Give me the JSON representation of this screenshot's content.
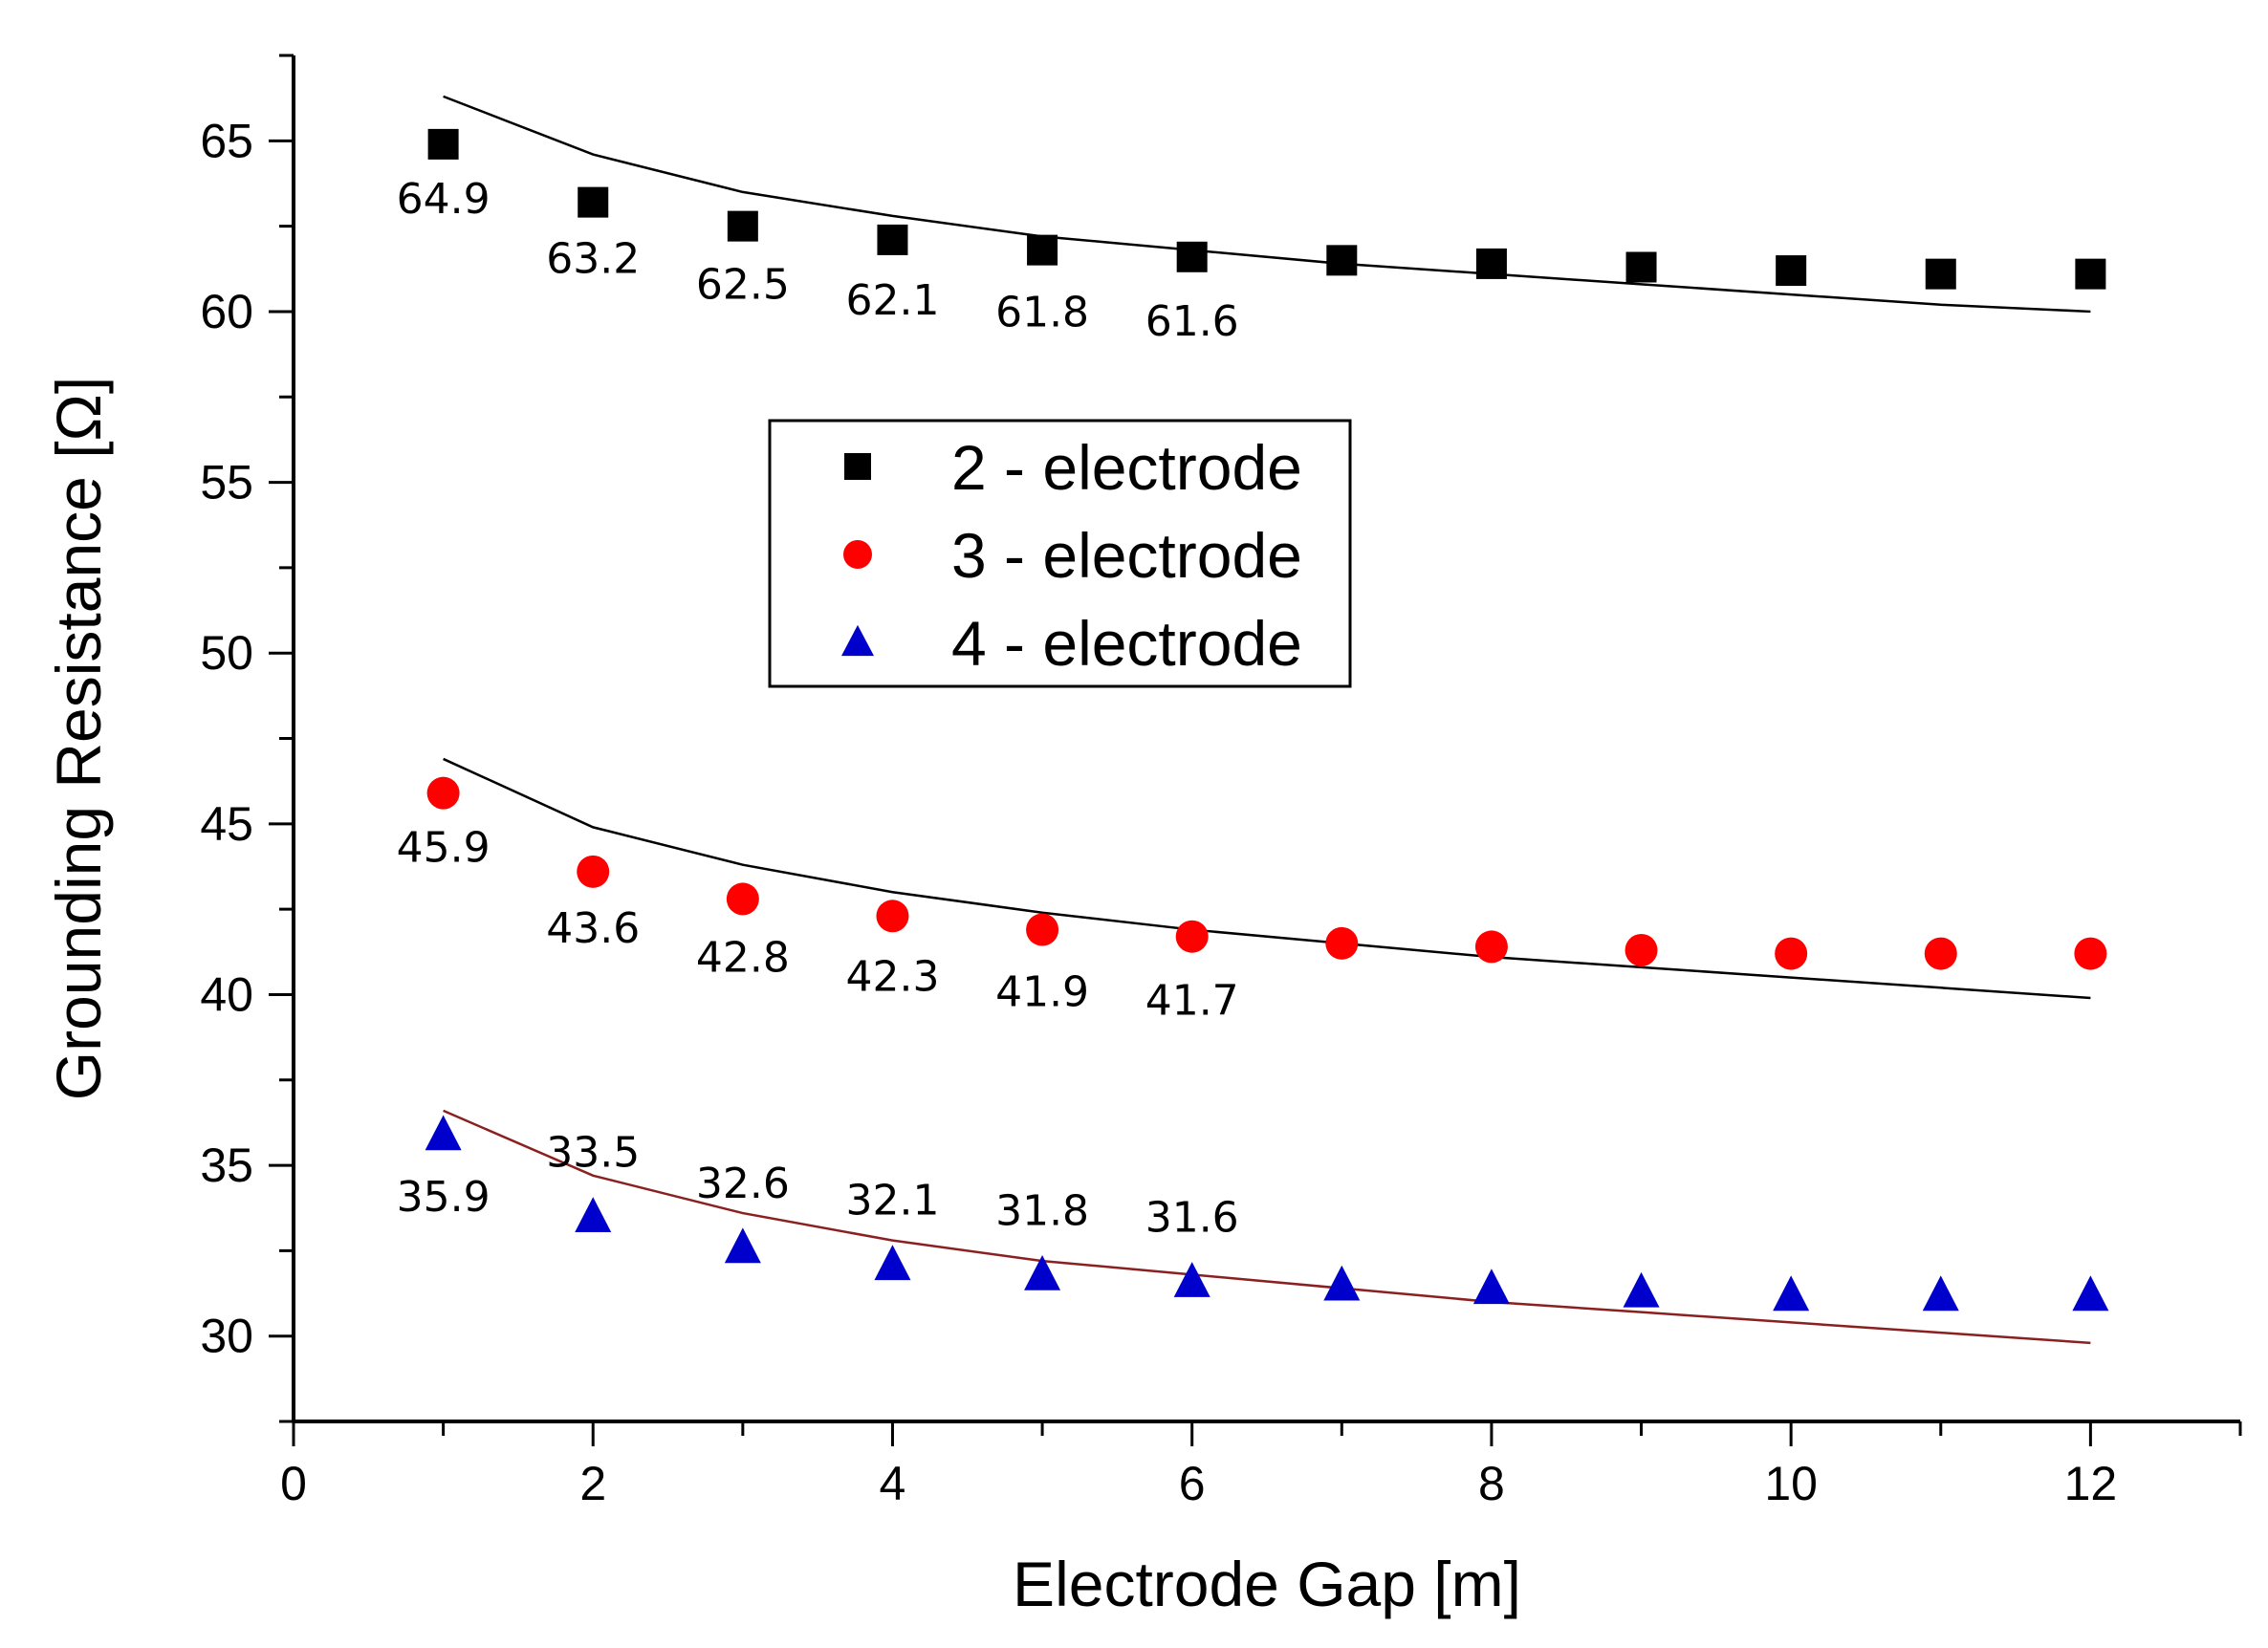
{
  "chart_data": {
    "type": "scatter",
    "title": "",
    "xlabel": "Electrode Gap [m]",
    "ylabel": "Grounding Resistance [Ω]",
    "xlim": [
      0,
      13
    ],
    "ylim": [
      27.5,
      67.5
    ],
    "xticks": [
      0,
      2,
      4,
      6,
      8,
      10,
      12
    ],
    "yticks": [
      30,
      35,
      40,
      45,
      50,
      55,
      60,
      65
    ],
    "x": [
      1,
      2,
      3,
      4,
      5,
      6,
      7,
      8,
      9,
      10,
      11,
      12
    ],
    "series": [
      {
        "name": "2 - electrode",
        "marker": "square",
        "color": "#000000",
        "values": [
          64.9,
          63.2,
          62.5,
          62.1,
          61.8,
          61.6,
          61.5,
          61.4,
          61.3,
          61.2,
          61.1,
          61.1
        ],
        "labels": [
          "64.9",
          "63.2",
          "62.5",
          "62.1",
          "61.8",
          "61.6"
        ],
        "fit": {
          "color": "#000000",
          "values": [
            66.3,
            64.6,
            63.5,
            62.8,
            62.2,
            61.8,
            61.4,
            61.1,
            60.8,
            60.5,
            60.2,
            60.0
          ]
        }
      },
      {
        "name": "3 - electrode",
        "marker": "circle",
        "color": "#ff0000",
        "values": [
          45.9,
          43.6,
          42.8,
          42.3,
          41.9,
          41.7,
          41.5,
          41.4,
          41.3,
          41.2,
          41.2,
          41.2
        ],
        "labels": [
          "45.9",
          "43.6",
          "42.8",
          "42.3",
          "41.9",
          "41.7"
        ],
        "fit": {
          "color": "#000000",
          "values": [
            46.9,
            44.9,
            43.8,
            43.0,
            42.4,
            41.9,
            41.5,
            41.1,
            40.8,
            40.5,
            40.2,
            39.9
          ]
        }
      },
      {
        "name": "4 - electrode",
        "marker": "triangle",
        "color": "#0000cc",
        "values": [
          35.9,
          33.5,
          32.6,
          32.1,
          31.8,
          31.6,
          31.5,
          31.4,
          31.3,
          31.2,
          31.2,
          31.2
        ],
        "labels": [
          "35.9",
          "33.5",
          "32.6",
          "32.1",
          "31.8",
          "31.6"
        ],
        "fit": {
          "color": "#8b2020",
          "values": [
            36.6,
            34.7,
            33.6,
            32.8,
            32.2,
            31.8,
            31.4,
            31.0,
            30.7,
            30.4,
            30.1,
            29.8
          ]
        }
      }
    ],
    "legend": {
      "position": "upper-center"
    },
    "grid": false
  }
}
